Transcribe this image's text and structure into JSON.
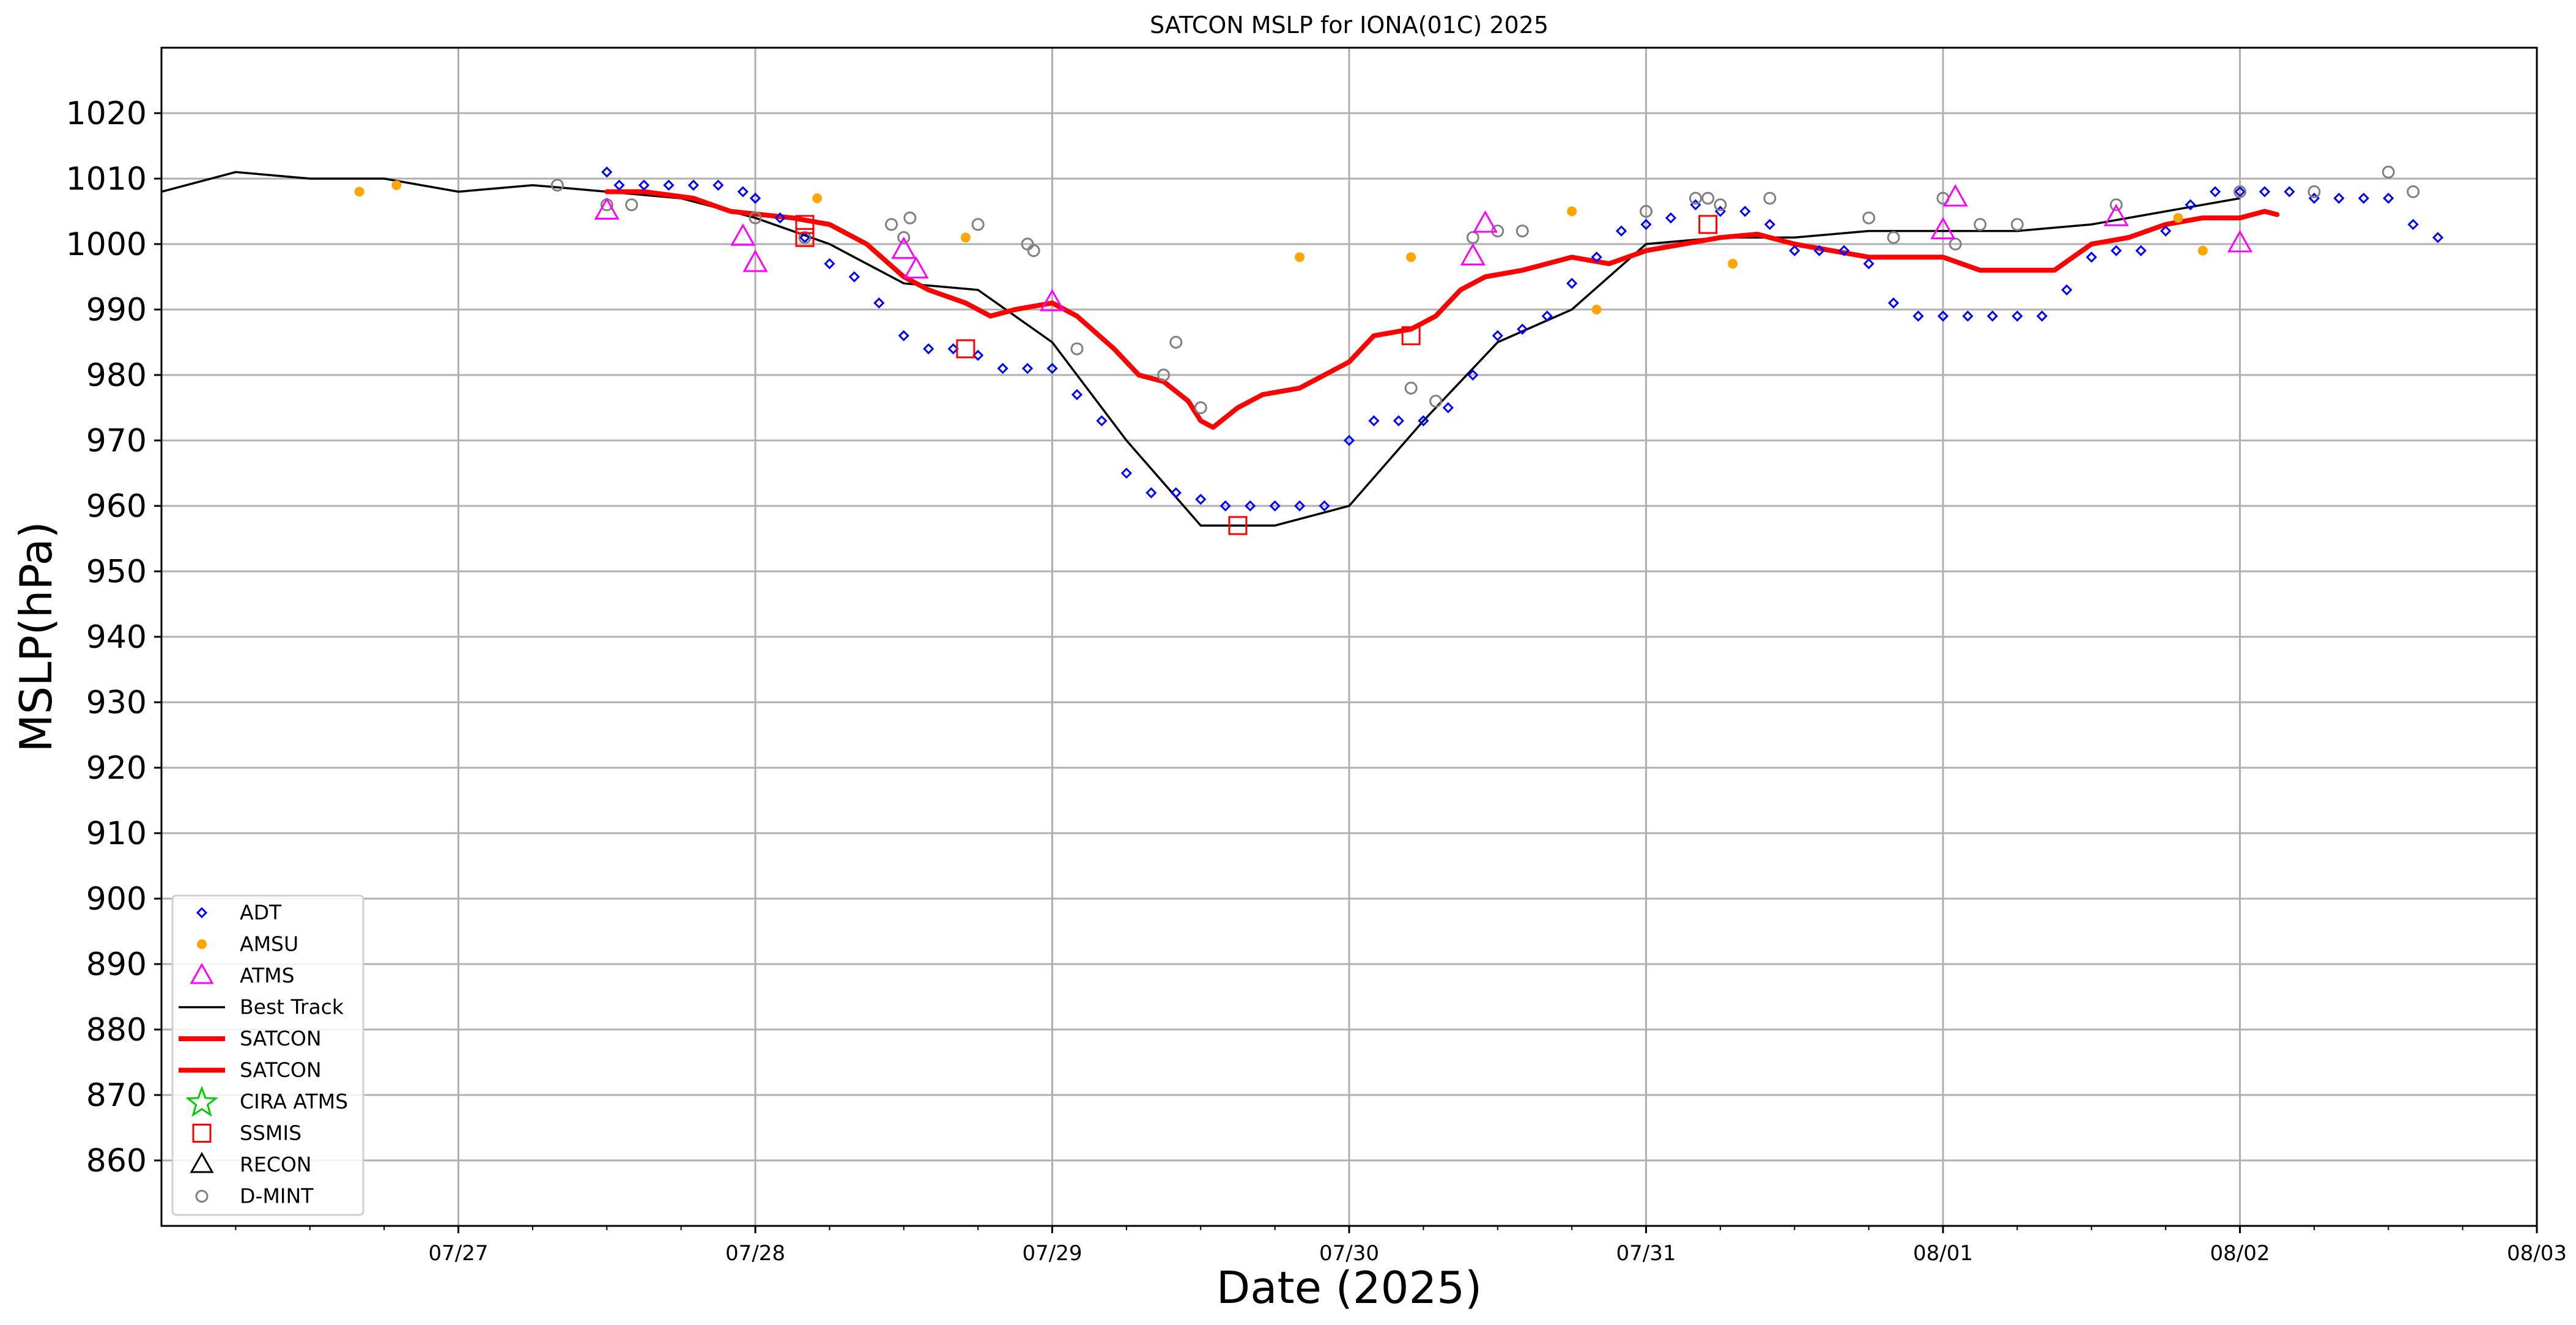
{
  "chart_data": {
    "type": "scatter",
    "title": "SATCON MSLP for IONA(01C) 2025",
    "xlabel": "Date (2025)",
    "ylabel": "MSLP(hPa)",
    "xlim": [
      "2025-07-26T00:00",
      "2025-08-03T00:00"
    ],
    "ylim": [
      850,
      1030
    ],
    "x_ticks": [
      {
        "at": "2025-07-27T00:00",
        "label": "07/27"
      },
      {
        "at": "2025-07-28T00:00",
        "label": "07/28"
      },
      {
        "at": "2025-07-29T00:00",
        "label": "07/29"
      },
      {
        "at": "2025-07-30T00:00",
        "label": "07/30"
      },
      {
        "at": "2025-07-31T00:00",
        "label": "07/31"
      },
      {
        "at": "2025-08-01T00:00",
        "label": "08/01"
      },
      {
        "at": "2025-08-02T00:00",
        "label": "08/02"
      },
      {
        "at": "2025-08-03T00:00",
        "label": "08/03"
      }
    ],
    "y_ticks": [
      860,
      870,
      880,
      890,
      900,
      910,
      920,
      930,
      940,
      950,
      960,
      970,
      980,
      990,
      1000,
      1010,
      1020
    ],
    "grid": true,
    "legend_position": "bottom-left",
    "legend": [
      {
        "label": "ADT",
        "marker": "diamond",
        "color": "#0000ff"
      },
      {
        "label": "AMSU",
        "marker": "dot",
        "color": "#ffa500"
      },
      {
        "label": "ATMS",
        "marker": "triangle",
        "color": "#ff00ff"
      },
      {
        "label": "Best Track",
        "marker": "line",
        "color": "#000000"
      },
      {
        "label": "SATCON",
        "marker": "thick-line",
        "color": "#ff0000"
      },
      {
        "label": "SATCON",
        "marker": "thick-line",
        "color": "#ff0000"
      },
      {
        "label": "CIRA ATMS",
        "marker": "star",
        "color": "#00cc00"
      },
      {
        "label": "SSMIS",
        "marker": "square",
        "color": "#ff0000"
      },
      {
        "label": "RECON",
        "marker": "triangle",
        "color": "#000000"
      },
      {
        "label": "D-MINT",
        "marker": "circle",
        "color": "#808080"
      }
    ],
    "series": {
      "best_track": [
        [
          "2025-07-26T00:00",
          1008
        ],
        [
          "2025-07-26T06:00",
          1011
        ],
        [
          "2025-07-26T12:00",
          1010
        ],
        [
          "2025-07-26T18:00",
          1010
        ],
        [
          "2025-07-27T00:00",
          1008
        ],
        [
          "2025-07-27T06:00",
          1009
        ],
        [
          "2025-07-27T12:00",
          1008
        ],
        [
          "2025-07-27T18:00",
          1007
        ],
        [
          "2025-07-28T00:00",
          1004
        ],
        [
          "2025-07-28T06:00",
          1000
        ],
        [
          "2025-07-28T12:00",
          994
        ],
        [
          "2025-07-28T18:00",
          993
        ],
        [
          "2025-07-29T00:00",
          985
        ],
        [
          "2025-07-29T06:00",
          970
        ],
        [
          "2025-07-29T12:00",
          957
        ],
        [
          "2025-07-29T18:00",
          957
        ],
        [
          "2025-07-30T00:00",
          960
        ],
        [
          "2025-07-30T06:00",
          973
        ],
        [
          "2025-07-30T12:00",
          985
        ],
        [
          "2025-07-30T18:00",
          990
        ],
        [
          "2025-07-31T00:00",
          1000
        ],
        [
          "2025-07-31T06:00",
          1001
        ],
        [
          "2025-07-31T12:00",
          1001
        ],
        [
          "2025-07-31T18:00",
          1002
        ],
        [
          "2025-08-01T00:00",
          1002
        ],
        [
          "2025-08-01T06:00",
          1002
        ],
        [
          "2025-08-01T12:00",
          1003
        ],
        [
          "2025-08-01T18:00",
          1005
        ],
        [
          "2025-08-02T00:00",
          1007
        ]
      ],
      "satcon": [
        [
          "2025-07-27T12:00",
          1008
        ],
        [
          "2025-07-27T15:00",
          1008
        ],
        [
          "2025-07-27T19:00",
          1007
        ],
        [
          "2025-07-27T22:00",
          1005
        ],
        [
          "2025-07-28T03:00",
          1004
        ],
        [
          "2025-07-28T06:00",
          1003
        ],
        [
          "2025-07-28T09:00",
          1000
        ],
        [
          "2025-07-28T12:00",
          995
        ],
        [
          "2025-07-28T14:00",
          993
        ],
        [
          "2025-07-28T17:00",
          991
        ],
        [
          "2025-07-28T19:00",
          989
        ],
        [
          "2025-07-28T21:00",
          990
        ],
        [
          "2025-07-29T00:00",
          991
        ],
        [
          "2025-07-29T02:00",
          989
        ],
        [
          "2025-07-29T05:00",
          984
        ],
        [
          "2025-07-29T07:00",
          980
        ],
        [
          "2025-07-29T09:00",
          979
        ],
        [
          "2025-07-29T11:00",
          976
        ],
        [
          "2025-07-29T12:00",
          973
        ],
        [
          "2025-07-29T13:00",
          972
        ],
        [
          "2025-07-29T15:00",
          975
        ],
        [
          "2025-07-29T17:00",
          977
        ],
        [
          "2025-07-29T20:00",
          978
        ],
        [
          "2025-07-29T22:00",
          980
        ],
        [
          "2025-07-30T00:00",
          982
        ],
        [
          "2025-07-30T02:00",
          986
        ],
        [
          "2025-07-30T05:00",
          987
        ],
        [
          "2025-07-30T07:00",
          989
        ],
        [
          "2025-07-30T09:00",
          993
        ],
        [
          "2025-07-30T11:00",
          995
        ],
        [
          "2025-07-30T14:00",
          996
        ],
        [
          "2025-07-30T18:00",
          998
        ],
        [
          "2025-07-30T21:00",
          997
        ],
        [
          "2025-07-31T00:00",
          999
        ],
        [
          "2025-07-31T03:00",
          1000
        ],
        [
          "2025-07-31T06:00",
          1001
        ],
        [
          "2025-07-31T09:00",
          1001.5
        ],
        [
          "2025-07-31T12:00",
          1000
        ],
        [
          "2025-07-31T15:00",
          999
        ],
        [
          "2025-07-31T18:00",
          998
        ],
        [
          "2025-07-31T21:00",
          998
        ],
        [
          "2025-08-01T00:00",
          998
        ],
        [
          "2025-08-01T03:00",
          996
        ],
        [
          "2025-08-01T06:00",
          996
        ],
        [
          "2025-08-01T09:00",
          996
        ],
        [
          "2025-08-01T12:00",
          1000
        ],
        [
          "2025-08-01T15:00",
          1001
        ],
        [
          "2025-08-01T18:00",
          1003
        ],
        [
          "2025-08-01T21:00",
          1004
        ],
        [
          "2025-08-02T00:00",
          1004
        ],
        [
          "2025-08-02T02:00",
          1005
        ],
        [
          "2025-08-02T03:00",
          1004.5
        ]
      ],
      "adt": [
        [
          "2025-07-27T12:00",
          1011
        ],
        [
          "2025-07-27T13:00",
          1009
        ],
        [
          "2025-07-27T15:00",
          1009
        ],
        [
          "2025-07-27T17:00",
          1009
        ],
        [
          "2025-07-27T19:00",
          1009
        ],
        [
          "2025-07-27T21:00",
          1009
        ],
        [
          "2025-07-27T23:00",
          1008
        ],
        [
          "2025-07-28T00:00",
          1007
        ],
        [
          "2025-07-28T02:00",
          1004
        ],
        [
          "2025-07-28T04:00",
          1001
        ],
        [
          "2025-07-28T06:00",
          997
        ],
        [
          "2025-07-28T08:00",
          995
        ],
        [
          "2025-07-28T10:00",
          991
        ],
        [
          "2025-07-28T12:00",
          986
        ],
        [
          "2025-07-28T14:00",
          984
        ],
        [
          "2025-07-28T16:00",
          984
        ],
        [
          "2025-07-28T18:00",
          983
        ],
        [
          "2025-07-28T20:00",
          981
        ],
        [
          "2025-07-28T22:00",
          981
        ],
        [
          "2025-07-29T00:00",
          981
        ],
        [
          "2025-07-29T02:00",
          977
        ],
        [
          "2025-07-29T04:00",
          973
        ],
        [
          "2025-07-29T06:00",
          965
        ],
        [
          "2025-07-29T08:00",
          962
        ],
        [
          "2025-07-29T10:00",
          962
        ],
        [
          "2025-07-29T12:00",
          961
        ],
        [
          "2025-07-29T14:00",
          960
        ],
        [
          "2025-07-29T16:00",
          960
        ],
        [
          "2025-07-29T18:00",
          960
        ],
        [
          "2025-07-29T20:00",
          960
        ],
        [
          "2025-07-29T22:00",
          960
        ],
        [
          "2025-07-30T00:00",
          970
        ],
        [
          "2025-07-30T02:00",
          973
        ],
        [
          "2025-07-30T04:00",
          973
        ],
        [
          "2025-07-30T06:00",
          973
        ],
        [
          "2025-07-30T08:00",
          975
        ],
        [
          "2025-07-30T10:00",
          980
        ],
        [
          "2025-07-30T12:00",
          986
        ],
        [
          "2025-07-30T14:00",
          987
        ],
        [
          "2025-07-30T16:00",
          989
        ],
        [
          "2025-07-30T18:00",
          994
        ],
        [
          "2025-07-30T20:00",
          998
        ],
        [
          "2025-07-30T22:00",
          1002
        ],
        [
          "2025-07-31T00:00",
          1003
        ],
        [
          "2025-07-31T02:00",
          1004
        ],
        [
          "2025-07-31T04:00",
          1006
        ],
        [
          "2025-07-31T06:00",
          1005
        ],
        [
          "2025-07-31T08:00",
          1005
        ],
        [
          "2025-07-31T10:00",
          1003
        ],
        [
          "2025-07-31T12:00",
          999
        ],
        [
          "2025-07-31T14:00",
          999
        ],
        [
          "2025-07-31T16:00",
          999
        ],
        [
          "2025-07-31T18:00",
          997
        ],
        [
          "2025-07-31T20:00",
          991
        ],
        [
          "2025-07-31T22:00",
          989
        ],
        [
          "2025-08-01T00:00",
          989
        ],
        [
          "2025-08-01T02:00",
          989
        ],
        [
          "2025-08-01T04:00",
          989
        ],
        [
          "2025-08-01T06:00",
          989
        ],
        [
          "2025-08-01T08:00",
          989
        ],
        [
          "2025-08-01T10:00",
          993
        ],
        [
          "2025-08-01T12:00",
          998
        ],
        [
          "2025-08-01T14:00",
          999
        ],
        [
          "2025-08-01T16:00",
          999
        ],
        [
          "2025-08-01T18:00",
          1002
        ],
        [
          "2025-08-01T20:00",
          1006
        ],
        [
          "2025-08-01T22:00",
          1008
        ],
        [
          "2025-08-02T00:00",
          1008
        ],
        [
          "2025-08-02T02:00",
          1008
        ],
        [
          "2025-08-02T04:00",
          1008
        ],
        [
          "2025-08-02T06:00",
          1007
        ],
        [
          "2025-08-02T08:00",
          1007
        ],
        [
          "2025-08-02T10:00",
          1007
        ],
        [
          "2025-08-02T12:00",
          1007
        ],
        [
          "2025-08-02T14:00",
          1003
        ],
        [
          "2025-08-02T16:00",
          1001
        ]
      ],
      "amsu": [
        [
          "2025-07-26T16:00",
          1008
        ],
        [
          "2025-07-26T19:00",
          1009
        ],
        [
          "2025-07-28T05:00",
          1007
        ],
        [
          "2025-07-28T17:00",
          1001
        ],
        [
          "2025-07-29T20:00",
          998
        ],
        [
          "2025-07-30T05:00",
          998
        ],
        [
          "2025-07-30T18:00",
          1005
        ],
        [
          "2025-07-30T20:00",
          990
        ],
        [
          "2025-07-31T07:00",
          997
        ],
        [
          "2025-08-01T19:00",
          1004
        ],
        [
          "2025-08-01T21:00",
          999
        ]
      ],
      "atms": [
        [
          "2025-07-27T12:00",
          1005
        ],
        [
          "2025-07-27T23:00",
          1001
        ],
        [
          "2025-07-28T00:00",
          997
        ],
        [
          "2025-07-28T12:00",
          999
        ],
        [
          "2025-07-28T13:00",
          996
        ],
        [
          "2025-07-29T00:00",
          991
        ],
        [
          "2025-07-30T10:00",
          998
        ],
        [
          "2025-07-30T11:00",
          1003
        ],
        [
          "2025-08-01T00:00",
          1002
        ],
        [
          "2025-08-01T01:00",
          1007
        ],
        [
          "2025-08-01T14:00",
          1004
        ],
        [
          "2025-08-02T00:00",
          1000
        ]
      ],
      "ssmis": [
        [
          "2025-07-28T04:00",
          1003
        ],
        [
          "2025-07-28T04:00",
          1001
        ],
        [
          "2025-07-28T17:00",
          984
        ],
        [
          "2025-07-29T15:00",
          957
        ],
        [
          "2025-07-30T05:00",
          986
        ],
        [
          "2025-07-31T05:00",
          1003
        ]
      ],
      "dmint": [
        [
          "2025-07-27T08:00",
          1009
        ],
        [
          "2025-07-27T12:00",
          1006
        ],
        [
          "2025-07-27T14:00",
          1006
        ],
        [
          "2025-07-28T00:00",
          1004
        ],
        [
          "2025-07-28T04:00",
          1001
        ],
        [
          "2025-07-28T11:00",
          1003
        ],
        [
          "2025-07-28T12:00",
          1001
        ],
        [
          "2025-07-28T12:30",
          1004
        ],
        [
          "2025-07-28T18:00",
          1003
        ],
        [
          "2025-07-28T22:00",
          1000
        ],
        [
          "2025-07-28T22:30",
          999
        ],
        [
          "2025-07-29T02:00",
          984
        ],
        [
          "2025-07-29T09:00",
          980
        ],
        [
          "2025-07-29T10:00",
          985
        ],
        [
          "2025-07-29T12:00",
          975
        ],
        [
          "2025-07-30T05:00",
          978
        ],
        [
          "2025-07-30T07:00",
          976
        ],
        [
          "2025-07-30T10:00",
          1001
        ],
        [
          "2025-07-30T12:00",
          1002
        ],
        [
          "2025-07-30T14:00",
          1002
        ],
        [
          "2025-07-31T00:00",
          1005
        ],
        [
          "2025-07-31T04:00",
          1007
        ],
        [
          "2025-07-31T05:00",
          1007
        ],
        [
          "2025-07-31T06:00",
          1006
        ],
        [
          "2025-07-31T10:00",
          1007
        ],
        [
          "2025-07-31T18:00",
          1004
        ],
        [
          "2025-07-31T20:00",
          1001
        ],
        [
          "2025-08-01T00:00",
          1007
        ],
        [
          "2025-08-01T01:00",
          1000
        ],
        [
          "2025-08-01T03:00",
          1003
        ],
        [
          "2025-08-01T06:00",
          1003
        ],
        [
          "2025-08-01T14:00",
          1006
        ],
        [
          "2025-08-02T00:00",
          1008
        ],
        [
          "2025-08-02T06:00",
          1008
        ],
        [
          "2025-08-02T12:00",
          1011
        ],
        [
          "2025-08-02T14:00",
          1008
        ]
      ]
    }
  }
}
